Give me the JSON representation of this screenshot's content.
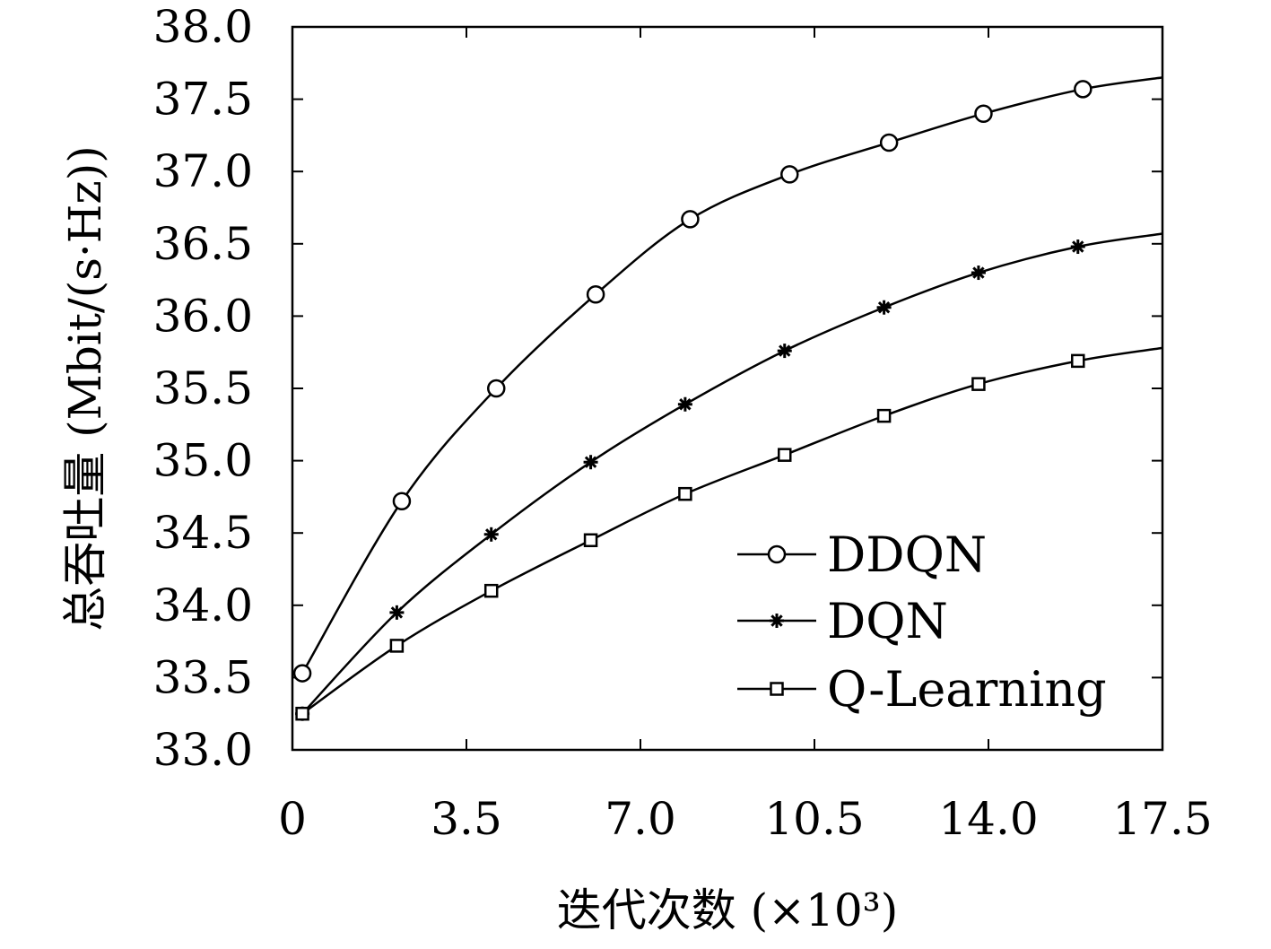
{
  "chart_data": {
    "type": "line",
    "title": "",
    "xlabel": "迭代次数 (×10³)",
    "ylabel": "总吞吐量 (Mbit/(s·Hz))",
    "xlim": [
      0,
      17.5
    ],
    "ylim": [
      33.0,
      38.0
    ],
    "x_ticks": [
      "0",
      "3.5",
      "7.0",
      "10.5",
      "14.0",
      "17.5"
    ],
    "y_ticks": [
      "33.0",
      "33.5",
      "34.0",
      "34.5",
      "35.0",
      "35.5",
      "36.0",
      "36.5",
      "37.0",
      "37.5",
      "38.0"
    ],
    "grid": false,
    "legend_position": "bottom-right",
    "series": [
      {
        "name": "DDQN",
        "marker": "circle",
        "x": [
          0.2,
          2.2,
          4.1,
          6.1,
          8.0,
          10.0,
          12.0,
          13.9,
          15.9,
          17.5
        ],
        "y": [
          33.53,
          34.72,
          35.5,
          36.15,
          36.67,
          36.98,
          37.2,
          37.4,
          37.57,
          37.65
        ]
      },
      {
        "name": "DQN",
        "marker": "star",
        "x": [
          0.2,
          2.1,
          4.0,
          6.0,
          7.9,
          9.9,
          11.9,
          13.8,
          15.8,
          17.5
        ],
        "y": [
          33.25,
          33.95,
          34.49,
          34.99,
          35.39,
          35.76,
          36.06,
          36.3,
          36.48,
          36.57
        ]
      },
      {
        "name": "Q-Learning",
        "marker": "square",
        "x": [
          0.2,
          2.1,
          4.0,
          6.0,
          7.9,
          9.9,
          11.9,
          13.8,
          15.8,
          17.5
        ],
        "y": [
          33.25,
          33.72,
          34.1,
          34.45,
          34.77,
          35.04,
          35.31,
          35.53,
          35.69,
          35.78
        ]
      }
    ]
  }
}
